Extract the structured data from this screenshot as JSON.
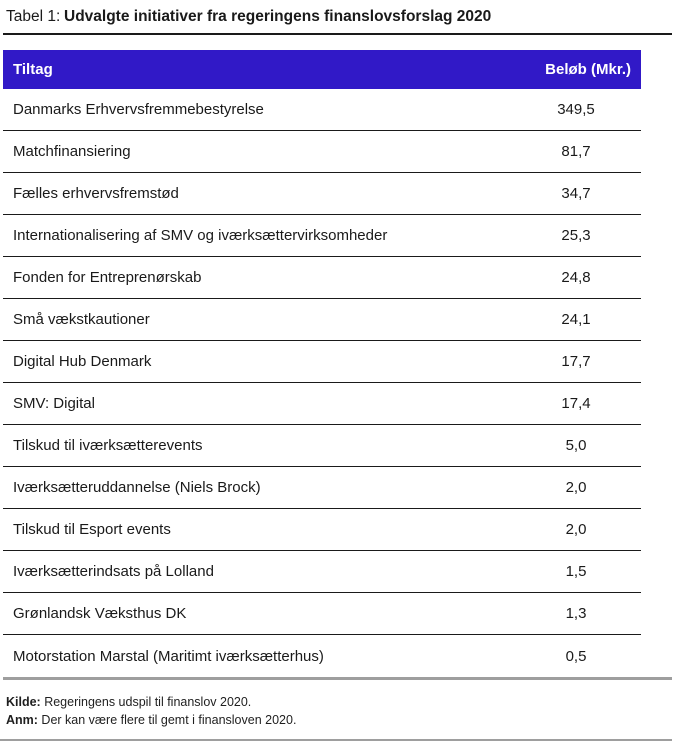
{
  "title": {
    "label": "Tabel 1:",
    "text": "Udvalgte initiativer fra regeringens finanslovsforslag 2020"
  },
  "table": {
    "columns": [
      "Tiltag",
      "Beløb (Mkr.)"
    ],
    "rows": [
      {
        "tiltag": "Danmarks Erhvervsfremmebestyrelse",
        "belob": "349,5"
      },
      {
        "tiltag": "Matchfinansiering",
        "belob": "81,7"
      },
      {
        "tiltag": "Fælles erhvervsfremstød",
        "belob": "34,7"
      },
      {
        "tiltag": "Internationalisering af SMV og iværksættervirksomheder",
        "belob": "25,3"
      },
      {
        "tiltag": "Fonden for Entreprenørskab",
        "belob": "24,8"
      },
      {
        "tiltag": "Små vækstkautioner",
        "belob": "24,1"
      },
      {
        "tiltag": "Digital Hub Denmark",
        "belob": "17,7"
      },
      {
        "tiltag": "SMV: Digital",
        "belob": "17,4"
      },
      {
        "tiltag": "Tilskud til iværksætterevents",
        "belob": "5,0"
      },
      {
        "tiltag": "Iværksætteruddannelse (Niels Brock)",
        "belob": "2,0"
      },
      {
        "tiltag": "Tilskud til Esport events",
        "belob": "2,0"
      },
      {
        "tiltag": "Iværksætterindsats på Lolland",
        "belob": "1,5"
      },
      {
        "tiltag": "Grønlandsk Væksthus DK",
        "belob": "1,3"
      },
      {
        "tiltag": "Motorstation Marstal (Maritimt iværksætterhus)",
        "belob": "0,5"
      }
    ]
  },
  "notes": {
    "kilde_label": "Kilde:",
    "kilde_text": " Regeringens udspil til finanslov 2020.",
    "anm_label": "Anm:",
    "anm_text": " Der kan være flere til gemt i finansloven 2020."
  },
  "colors": {
    "header_bg": "#3119C7",
    "header_text": "#ffffff",
    "row_border": "#1a1a1a",
    "gray_rule": "#9e9e9e"
  }
}
